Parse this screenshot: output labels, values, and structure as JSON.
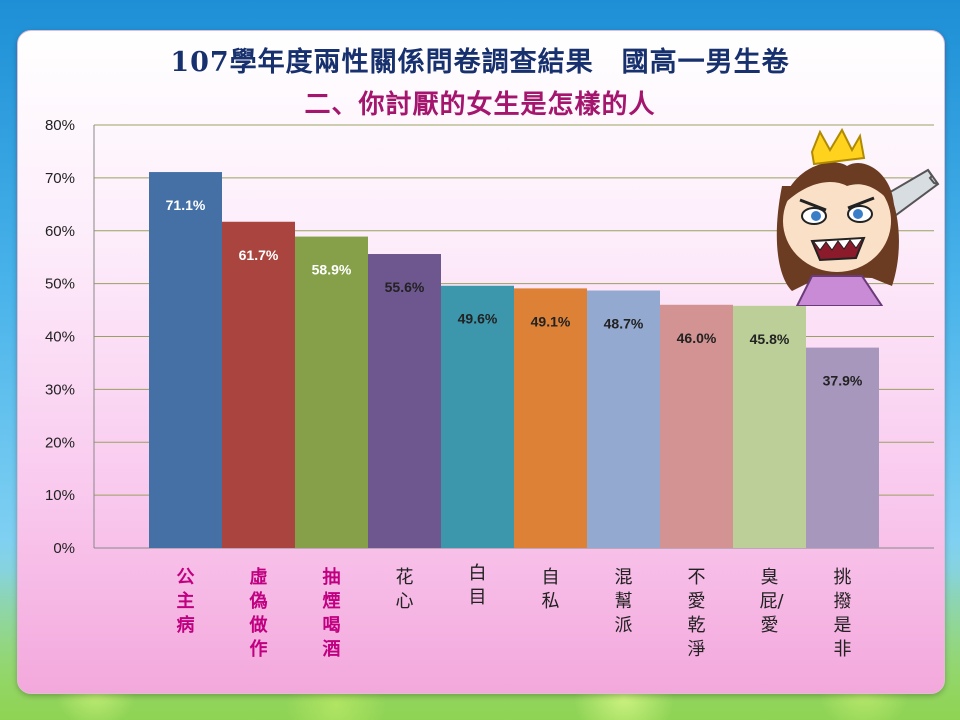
{
  "slide": {
    "title": "107學年度兩性關係問卷調查結果　國高一男生卷",
    "subtitle": "二、你討厭的女生是怎樣的人"
  },
  "chart_data": {
    "type": "bar",
    "categories": [
      "公主病",
      "虛偽做作",
      "抽煙喝酒",
      "花心",
      "白目",
      "自私",
      "混幫派",
      "不愛乾淨",
      "臭屁/愛",
      "挑撥是非"
    ],
    "values": [
      71.1,
      61.7,
      58.9,
      55.6,
      49.6,
      49.1,
      48.7,
      46.0,
      45.8,
      37.9
    ],
    "data_labels": [
      "71.1%",
      "61.7%",
      "58.9%",
      "55.6%",
      "49.6%",
      "49.1%",
      "48.7%",
      "46.0%",
      "45.8%",
      "37.9%"
    ],
    "y_ticks": [
      "0%",
      "10%",
      "20%",
      "30%",
      "40%",
      "50%",
      "60%",
      "70%",
      "80%"
    ],
    "ylim": [
      0,
      80
    ],
    "grid": true,
    "bar_colors": [
      "#4470a5",
      "#a9443f",
      "#86a04a",
      "#6e568f",
      "#3c97ad",
      "#dc8136",
      "#93a9d0",
      "#d39392",
      "#bccf98",
      "#a797bd"
    ],
    "label_colors": [
      "#ffffff",
      "#ffffff",
      "#ffffff",
      "#222222",
      "#222222",
      "#222222",
      "#222222",
      "#222222",
      "#222222",
      "#222222"
    ],
    "category_text_colors": [
      "#c00080",
      "#c00080",
      "#c00080",
      "#222222",
      "#222222",
      "#222222",
      "#222222",
      "#222222",
      "#222222",
      "#222222"
    ]
  }
}
